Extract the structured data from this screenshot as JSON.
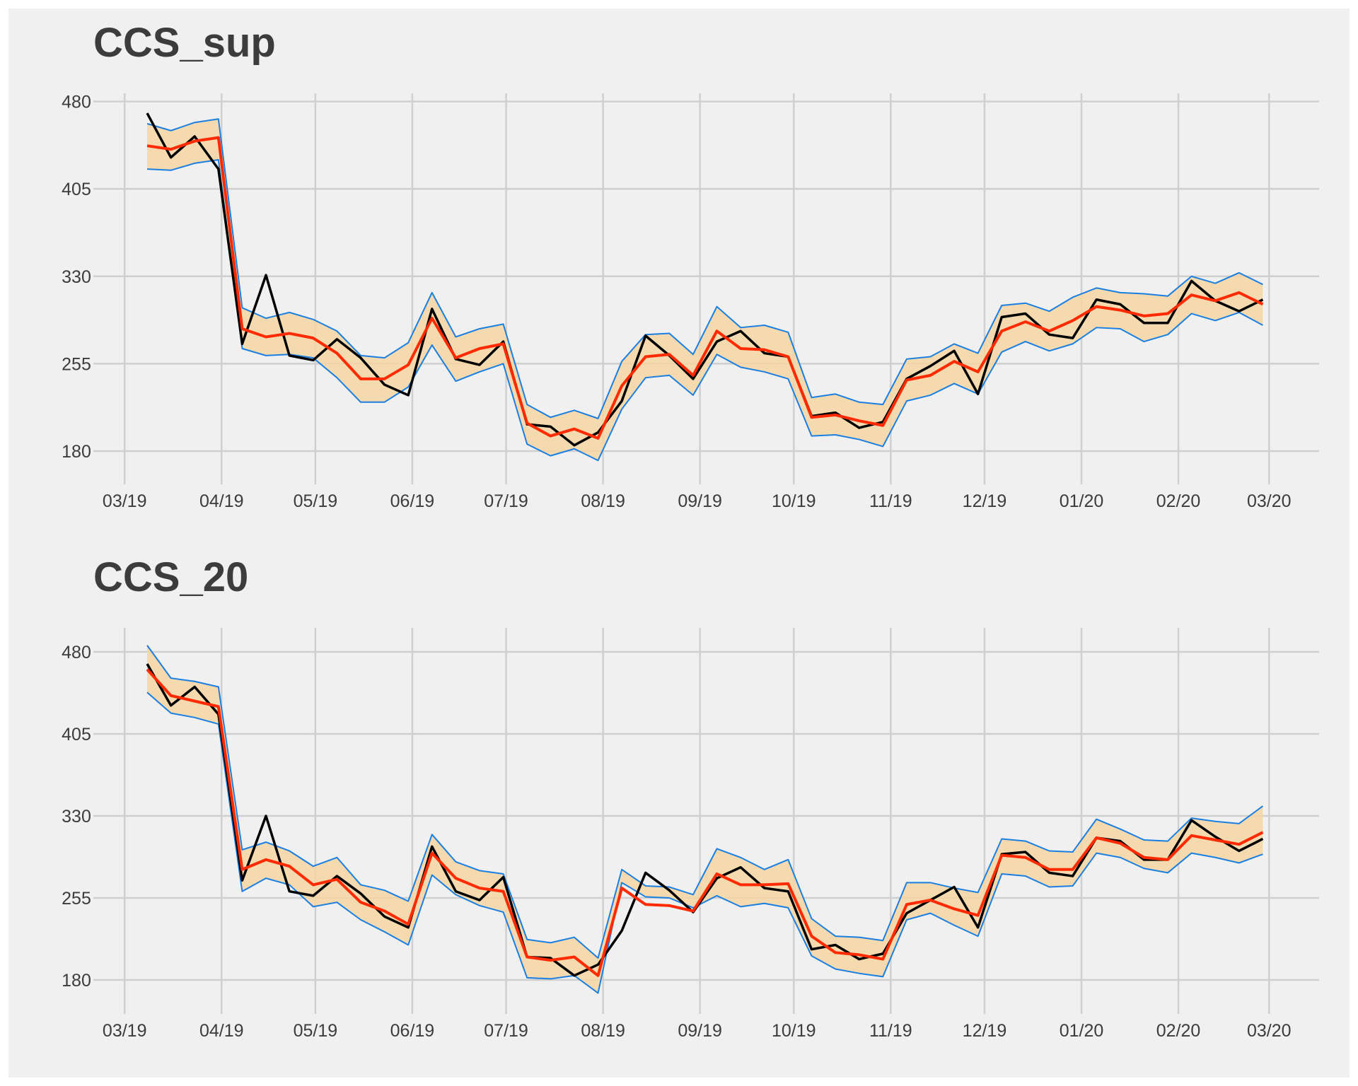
{
  "chart_data": [
    {
      "type": "line",
      "title": "CCS_sup",
      "x": [
        7.2,
        14.8,
        22.4,
        30.0,
        37.6,
        45.2,
        52.7,
        60.3,
        67.9,
        75.5,
        83.1,
        90.7,
        98.3,
        105.9,
        113.5,
        121.1,
        128.7,
        136.2,
        143.8,
        151.4,
        159.0,
        166.6,
        174.2,
        181.8,
        189.4,
        197.0,
        204.6,
        212.2,
        219.7,
        227.3,
        234.9,
        242.5,
        250.1,
        257.7,
        265.3,
        272.9,
        280.5,
        288.1,
        295.7,
        303.2,
        310.8,
        318.4,
        326.0,
        333.6,
        341.2,
        348.8,
        356.4,
        364.0
      ],
      "xlim": [
        -10,
        382
      ],
      "xticks": [
        {
          "value": 0,
          "label": "03/19"
        },
        {
          "value": 31,
          "label": "04/19"
        },
        {
          "value": 61,
          "label": "05/19"
        },
        {
          "value": 92,
          "label": "06/19"
        },
        {
          "value": 122,
          "label": "07/19"
        },
        {
          "value": 153,
          "label": "08/19"
        },
        {
          "value": 184,
          "label": "09/19"
        },
        {
          "value": 214,
          "label": "10/19"
        },
        {
          "value": 245,
          "label": "11/19"
        },
        {
          "value": 275,
          "label": "12/19"
        },
        {
          "value": 306,
          "label": "01/20"
        },
        {
          "value": 337,
          "label": "02/20"
        },
        {
          "value": 366,
          "label": "03/20"
        }
      ],
      "ylim": [
        160,
        487
      ],
      "yticks": [
        180,
        255,
        330,
        405,
        480
      ],
      "grid": true,
      "band_color": "#f6d5a3",
      "series": [
        {
          "color": "#000000",
          "values": [
            470,
            432,
            450,
            422,
            272,
            331,
            262,
            258,
            276,
            260,
            237,
            228,
            302,
            259,
            254,
            274,
            203,
            201,
            185,
            196,
            223,
            279,
            262,
            242,
            274,
            283,
            264,
            261,
            210,
            213,
            200,
            205,
            242,
            253,
            266,
            229,
            295,
            298,
            280,
            277,
            310,
            306,
            290,
            290,
            326,
            309,
            300,
            310
          ]
        },
        {
          "color": "#ff2a00",
          "values": [
            442,
            439,
            446,
            449,
            285,
            278,
            281,
            277,
            264,
            242,
            242,
            254,
            294,
            260,
            268,
            272,
            204,
            193,
            199,
            191,
            236,
            261,
            263,
            245,
            283,
            268,
            267,
            261,
            209,
            211,
            206,
            202,
            241,
            245,
            257,
            248,
            283,
            291,
            283,
            292,
            304,
            301,
            296,
            298,
            314,
            309,
            316,
            306
          ]
        },
        {
          "color": "#1a7fe0",
          "values": [
            461,
            455,
            462,
            465,
            303,
            294,
            299,
            293,
            283,
            262,
            260,
            273,
            316,
            278,
            285,
            289,
            220,
            209,
            215,
            208,
            257,
            280,
            281,
            263,
            304,
            286,
            288,
            282,
            226,
            229,
            222,
            220,
            259,
            261,
            272,
            264,
            305,
            307,
            300,
            312,
            320,
            316,
            315,
            313,
            330,
            324,
            333,
            323
          ]
        },
        {
          "color": "#1a7fe0",
          "values": [
            422,
            421,
            427,
            430,
            268,
            262,
            263,
            260,
            243,
            222,
            222,
            235,
            271,
            240,
            248,
            255,
            186,
            176,
            182,
            172,
            216,
            243,
            245,
            228,
            263,
            252,
            248,
            242,
            193,
            194,
            190,
            184,
            223,
            228,
            238,
            229,
            265,
            274,
            266,
            272,
            286,
            285,
            274,
            280,
            298,
            292,
            299,
            288
          ]
        }
      ]
    },
    {
      "type": "line",
      "title": "CCS_20",
      "x": [
        7.2,
        14.8,
        22.4,
        30.0,
        37.6,
        45.2,
        52.7,
        60.3,
        67.9,
        75.5,
        83.1,
        90.7,
        98.3,
        105.9,
        113.5,
        121.1,
        128.7,
        136.2,
        143.8,
        151.4,
        159.0,
        166.6,
        174.2,
        181.8,
        189.4,
        197.0,
        204.6,
        212.2,
        219.7,
        227.3,
        234.9,
        242.5,
        250.1,
        257.7,
        265.3,
        272.9,
        280.5,
        288.1,
        295.7,
        303.2,
        310.8,
        318.4,
        326.0,
        333.6,
        341.2,
        348.8,
        356.4,
        364.0
      ],
      "xlim": [
        -10,
        382
      ],
      "xticks": [
        {
          "value": 0,
          "label": "03/19"
        },
        {
          "value": 31,
          "label": "04/19"
        },
        {
          "value": 61,
          "label": "05/19"
        },
        {
          "value": 92,
          "label": "06/19"
        },
        {
          "value": 122,
          "label": "07/19"
        },
        {
          "value": 153,
          "label": "08/19"
        },
        {
          "value": 184,
          "label": "09/19"
        },
        {
          "value": 214,
          "label": "10/19"
        },
        {
          "value": 245,
          "label": "11/19"
        },
        {
          "value": 275,
          "label": "12/19"
        },
        {
          "value": 306,
          "label": "01/20"
        },
        {
          "value": 337,
          "label": "02/20"
        },
        {
          "value": 366,
          "label": "03/20"
        }
      ],
      "ylim": [
        158,
        502
      ],
      "yticks": [
        180,
        255,
        330,
        405,
        480
      ],
      "grid": true,
      "band_color": "#f6d5a3",
      "series": [
        {
          "color": "#000000",
          "values": [
            469,
            431,
            448,
            423,
            271,
            330,
            261,
            257,
            275,
            259,
            238,
            228,
            302,
            261,
            253,
            274,
            201,
            200,
            184,
            194,
            225,
            278,
            262,
            242,
            273,
            283,
            264,
            261,
            208,
            212,
            199,
            204,
            241,
            253,
            265,
            228,
            295,
            297,
            278,
            275,
            310,
            307,
            290,
            290,
            326,
            311,
            298,
            309
          ]
        },
        {
          "color": "#ff2a00",
          "values": [
            464,
            440,
            435,
            430,
            281,
            290,
            284,
            267,
            272,
            251,
            243,
            231,
            296,
            273,
            264,
            261,
            201,
            198,
            201,
            184,
            264,
            249,
            248,
            243,
            277,
            267,
            267,
            268,
            220,
            205,
            203,
            199,
            249,
            253,
            245,
            239,
            294,
            292,
            281,
            281,
            310,
            305,
            292,
            290,
            312,
            308,
            304,
            315
          ]
        },
        {
          "color": "#1a7fe0",
          "values": [
            486,
            456,
            453,
            448,
            299,
            306,
            298,
            284,
            292,
            267,
            262,
            252,
            313,
            288,
            280,
            277,
            217,
            214,
            219,
            200,
            281,
            266,
            265,
            258,
            300,
            292,
            281,
            290,
            236,
            220,
            219,
            216,
            269,
            269,
            264,
            260,
            309,
            307,
            298,
            297,
            327,
            318,
            308,
            307,
            328,
            325,
            323,
            339
          ]
        },
        {
          "color": "#1a7fe0",
          "values": [
            443,
            424,
            420,
            414,
            261,
            273,
            267,
            247,
            251,
            235,
            224,
            212,
            276,
            258,
            248,
            242,
            182,
            181,
            184,
            168,
            269,
            256,
            255,
            246,
            257,
            247,
            250,
            246,
            202,
            190,
            186,
            183,
            235,
            241,
            230,
            220,
            277,
            275,
            265,
            266,
            296,
            292,
            282,
            278,
            296,
            292,
            287,
            295
          ]
        }
      ]
    }
  ]
}
